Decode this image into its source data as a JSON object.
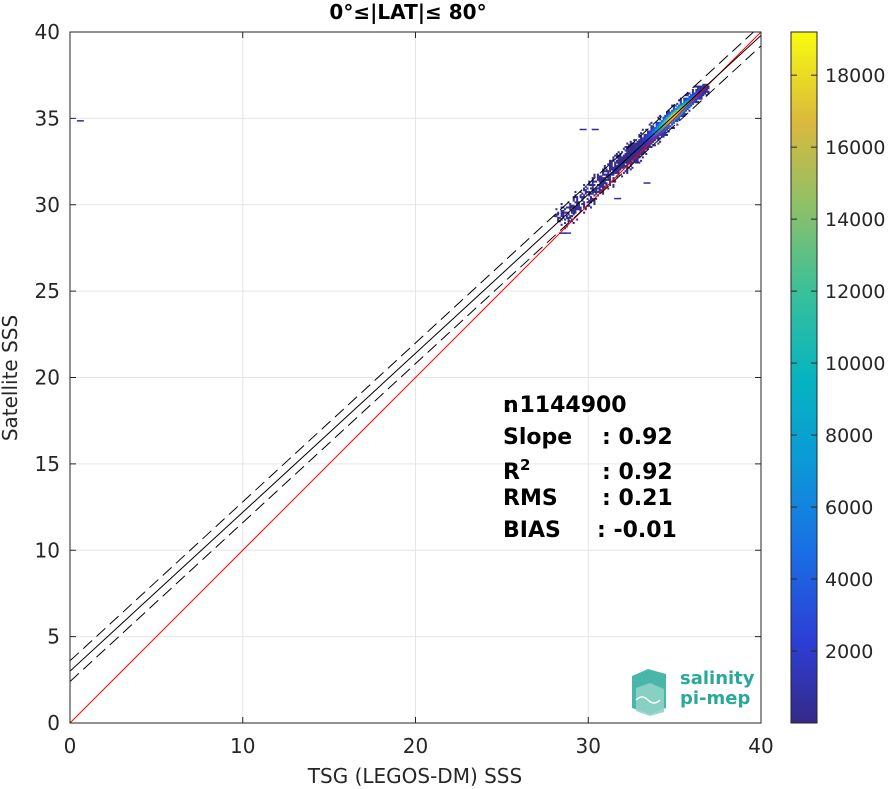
{
  "chart_data": {
    "type": "heatmap",
    "title": "0°≤|LAT|≤ 80°",
    "xlabel": "TSG (LEGOS-DM) SSS",
    "ylabel": "Satellite SSS",
    "xlim": [
      0,
      40
    ],
    "ylim": [
      0,
      40
    ],
    "xticks": [
      "0",
      "10",
      "20",
      "30",
      "40"
    ],
    "yticks": [
      "0",
      "5",
      "10",
      "15",
      "20",
      "25",
      "30",
      "35",
      "40"
    ],
    "grid": true,
    "colorbar": {
      "range": [
        0,
        19200
      ],
      "ticks": [
        "2000",
        "4000",
        "6000",
        "8000",
        "10000",
        "12000",
        "14000",
        "16000",
        "18000"
      ],
      "colormap": "parula"
    },
    "density": {
      "x_range": [
        28,
        37
      ],
      "y_range": [
        28,
        37
      ],
      "peak_at": [
        35,
        34.9
      ],
      "peak_count": 19000
    },
    "lines": [
      {
        "type": "identity",
        "color": "#ff0000",
        "slope": 1,
        "intercept": 0
      },
      {
        "type": "fit",
        "color": "#000000",
        "slope": 0.92,
        "intercept": 3.0
      },
      {
        "type": "fit-upper",
        "color": "#000000",
        "dash": true,
        "slope": 0.92,
        "intercept": 3.6
      },
      {
        "type": "fit-lower",
        "color": "#000000",
        "dash": true,
        "slope": 0.92,
        "intercept": 2.4
      }
    ],
    "stats": [
      {
        "label": "n",
        "value": ": 1144900"
      },
      {
        "label": "Slope",
        "value": ": 0.92"
      },
      {
        "label": "R",
        "sup": "2",
        "value": ": 0.92"
      },
      {
        "label": "RMS",
        "value": ": 0.21"
      },
      {
        "label": "BIAS",
        "value": ": -0.01"
      }
    ]
  },
  "logo": {
    "line1": "salinity",
    "line2": "pi-mep",
    "color": "#2aa99b"
  }
}
